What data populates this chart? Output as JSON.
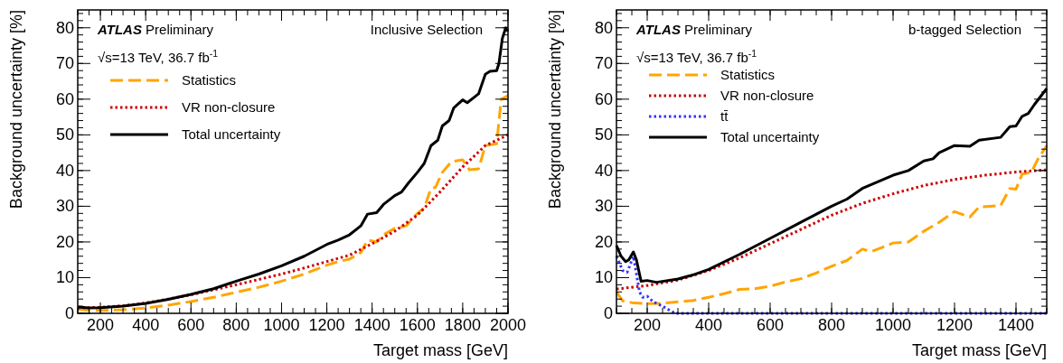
{
  "chart_data": [
    {
      "type": "line",
      "xlabel": "Target mass [GeV]",
      "ylabel": "Background uncertainty [%]",
      "xlim": [
        100,
        2000
      ],
      "ylim": [
        0,
        85
      ],
      "xticks": [
        200,
        400,
        600,
        800,
        1000,
        1200,
        1400,
        1600,
        1800,
        2000
      ],
      "yticks": [
        0,
        10,
        20,
        30,
        40,
        50,
        60,
        70,
        80
      ],
      "legend": "top left",
      "annotations": [
        "ATLAS",
        "Preliminary",
        "√s=13 TeV, 36.7 fb$^{-1}$",
        "Inclusive Selection"
      ],
      "series": [
        {
          "name": "Statistics",
          "color": "#ffa500",
          "line_style": "dashed",
          "x": [
            100,
            150,
            200,
            300,
            400,
            500,
            600,
            700,
            800,
            900,
            1000,
            1100,
            1200,
            1250,
            1300,
            1350,
            1380,
            1420,
            1450,
            1500,
            1550,
            1600,
            1630,
            1660,
            1680,
            1710,
            1750,
            1800,
            1830,
            1870,
            1900,
            1950,
            1970,
            2000
          ],
          "values": [
            1.2,
            0.8,
            0.8,
            1.0,
            1.5,
            2.3,
            3.3,
            4.5,
            5.9,
            7.3,
            9,
            11,
            13.5,
            14.5,
            15.2,
            17,
            20.5,
            20,
            22,
            23.8,
            24.5,
            28,
            29.5,
            35,
            35.3,
            39.5,
            42.5,
            43,
            40.2,
            40.5,
            47,
            47.5,
            60,
            61
          ]
        },
        {
          "name": "VR non-closure",
          "color": "#cc0000",
          "line_style": "dotted",
          "x": [
            100,
            200,
            300,
            400,
            500,
            600,
            700,
            800,
            900,
            1000,
            1100,
            1200,
            1300,
            1400,
            1500,
            1600,
            1700,
            1800,
            1900,
            2000
          ],
          "values": [
            1.5,
            1.7,
            2.1,
            2.9,
            4,
            5.2,
            6.6,
            8,
            9.5,
            11,
            12.7,
            14.5,
            16.3,
            19.5,
            23,
            27.5,
            34,
            41,
            47,
            50
          ]
        },
        {
          "name": "Total uncertainty",
          "color": "#000000",
          "line_style": "solid",
          "x": [
            100,
            150,
            200,
            300,
            400,
            500,
            600,
            700,
            800,
            900,
            1000,
            1100,
            1200,
            1250,
            1300,
            1350,
            1380,
            1420,
            1450,
            1500,
            1530,
            1560,
            1600,
            1630,
            1660,
            1690,
            1710,
            1740,
            1760,
            1800,
            1820,
            1850,
            1870,
            1900,
            1920,
            1950,
            1960,
            1975,
            1990,
            2000
          ],
          "values": [
            1.8,
            1.5,
            1.6,
            2.0,
            2.8,
            3.9,
            5.3,
            6.9,
            9.0,
            11,
            13.3,
            16,
            19.3,
            20.5,
            22,
            24.5,
            27.8,
            28.2,
            30.5,
            33,
            34,
            36.5,
            39.5,
            42,
            47,
            48.5,
            52.5,
            54,
            57.5,
            59.8,
            59,
            60.5,
            61.5,
            67,
            67.8,
            68,
            70,
            77,
            80,
            79
          ]
        }
      ]
    },
    {
      "type": "line",
      "xlabel": "Target mass [GeV]",
      "ylabel": "Background uncertainty [%]",
      "xlim": [
        100,
        1500
      ],
      "ylim": [
        0,
        85
      ],
      "xticks": [
        200,
        400,
        600,
        800,
        1000,
        1200,
        1400
      ],
      "yticks": [
        0,
        10,
        20,
        30,
        40,
        50,
        60,
        70,
        80
      ],
      "legend": "top left",
      "annotations": [
        "ATLAS",
        "Preliminary",
        "√s=13 TeV, 36.7 fb$^{-1}$",
        "b-tagged Selection"
      ],
      "series": [
        {
          "name": "Statistics",
          "color": "#ffa500",
          "line_style": "dashed",
          "x": [
            100,
            120,
            150,
            200,
            250,
            300,
            350,
            400,
            450,
            500,
            550,
            600,
            650,
            700,
            750,
            800,
            850,
            900,
            930,
            1000,
            1050,
            1100,
            1150,
            1200,
            1250,
            1280,
            1350,
            1380,
            1400,
            1420,
            1450,
            1470,
            1500
          ],
          "values": [
            6,
            3.5,
            3,
            2.7,
            2.8,
            3.2,
            3.6,
            4.5,
            5.5,
            6.7,
            6.9,
            7.6,
            8.8,
            9.7,
            11.3,
            13.2,
            14.8,
            18,
            17.3,
            19.7,
            20,
            23,
            25.5,
            28.5,
            27,
            29.8,
            30.2,
            35,
            34.8,
            39,
            39.5,
            43,
            47
          ]
        },
        {
          "name": "VR non-closure",
          "color": "#cc0000",
          "line_style": "dotted",
          "x": [
            100,
            200,
            300,
            400,
            500,
            600,
            700,
            800,
            900,
            1000,
            1100,
            1200,
            1300,
            1400,
            1500
          ],
          "values": [
            6.8,
            7.8,
            9.3,
            12,
            15.5,
            19.5,
            23.5,
            27.5,
            30.8,
            33.5,
            35.8,
            37.5,
            38.7,
            39.6,
            40.2
          ]
        },
        {
          "name": "tt̄",
          "color": "#3333ff",
          "line_style": "dotted",
          "x": [
            100,
            120,
            135,
            155,
            175,
            185,
            200,
            220,
            250,
            270,
            290,
            1500
          ],
          "values": [
            16,
            12,
            11.5,
            16,
            6,
            4.5,
            4.8,
            3.2,
            2,
            1,
            0,
            0
          ]
        },
        {
          "name": "Total uncertainty",
          "color": "#000000",
          "line_style": "solid",
          "x": [
            100,
            115,
            130,
            140,
            155,
            165,
            180,
            200,
            230,
            300,
            350,
            400,
            500,
            600,
            700,
            800,
            850,
            900,
            1000,
            1050,
            1100,
            1130,
            1150,
            1200,
            1250,
            1280,
            1350,
            1380,
            1400,
            1420,
            1440,
            1460,
            1500
          ],
          "values": [
            19,
            16,
            14.5,
            15,
            17.2,
            15,
            9,
            9.2,
            8.7,
            9.6,
            10.8,
            12.3,
            16.5,
            21,
            25.5,
            30,
            32,
            35,
            38.7,
            40,
            42.7,
            43.3,
            45,
            47,
            46.8,
            48.5,
            49.3,
            52.3,
            52.5,
            55.2,
            56,
            58.5,
            63
          ]
        }
      ]
    }
  ]
}
